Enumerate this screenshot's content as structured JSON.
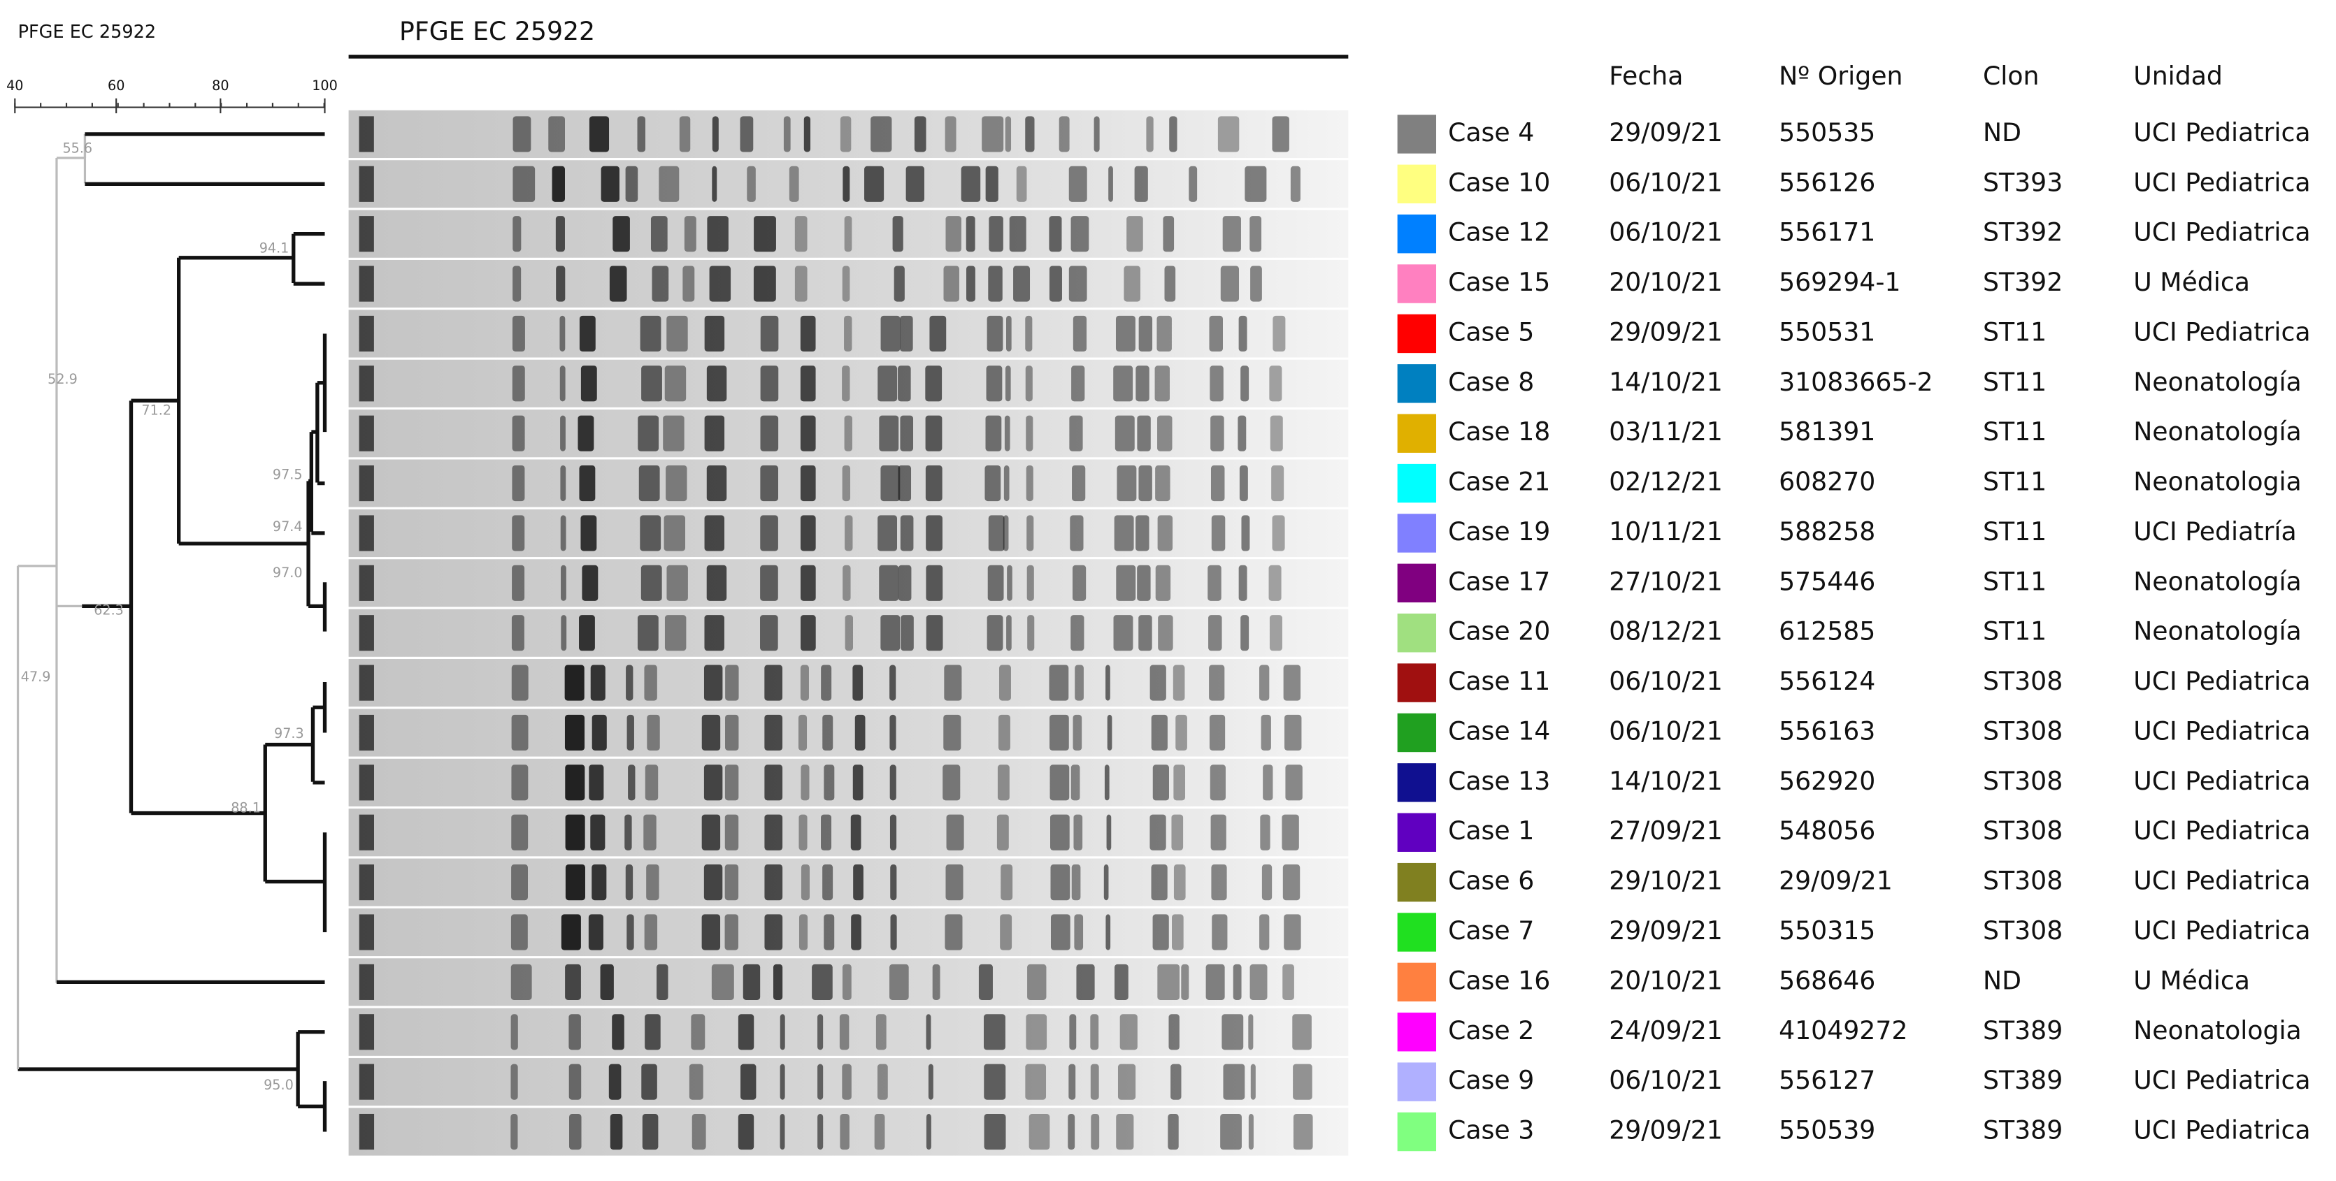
{
  "dendrogram": {
    "title": "PFGE EC 25922",
    "scale_ticks": [
      "40",
      "60",
      "80",
      "100"
    ],
    "nodes": [
      "55.6",
      "52.9",
      "94.1",
      "71.2",
      "97.5",
      "97.4",
      "97.0",
      "62.3",
      "47.9",
      "97.3",
      "88.1",
      "95.0"
    ]
  },
  "gel": {
    "title": "PFGE EC 25922"
  },
  "table": {
    "headers": [
      "Fecha",
      "Nº Origen",
      "Clon",
      "Unidad"
    ],
    "rows": [
      {
        "color": "#808080",
        "case": "Case 4",
        "fecha": "29/09/21",
        "origen": "550535",
        "clon": "ND",
        "unidad": "UCI Pediatrica"
      },
      {
        "color": "#ffff80",
        "case": "Case 10",
        "fecha": "06/10/21",
        "origen": "556126",
        "clon": "ST393",
        "unidad": "UCI Pediatrica"
      },
      {
        "color": "#0080ff",
        "case": "Case 12",
        "fecha": "06/10/21",
        "origen": "556171",
        "clon": "ST392",
        "unidad": "UCI Pediatrica"
      },
      {
        "color": "#ff80c0",
        "case": "Case 15",
        "fecha": "20/10/21",
        "origen": "569294-1",
        "clon": "ST392",
        "unidad": "U Médica"
      },
      {
        "color": "#ff0000",
        "case": "Case 5",
        "fecha": "29/09/21",
        "origen": "550531",
        "clon": "ST11",
        "unidad": "UCI Pediatrica"
      },
      {
        "color": "#0080c0",
        "case": "Case 8",
        "fecha": "14/10/21",
        "origen": "31083665-2",
        "clon": "ST11",
        "unidad": "Neonatología"
      },
      {
        "color": "#e0b000",
        "case": "Case 18",
        "fecha": "03/11/21",
        "origen": "581391",
        "clon": "ST11",
        "unidad": "Neonatología"
      },
      {
        "color": "#00ffff",
        "case": "Case 21",
        "fecha": "02/12/21",
        "origen": "608270",
        "clon": "ST11",
        "unidad": "Neonatologia"
      },
      {
        "color": "#8080ff",
        "case": "Case 19",
        "fecha": "10/11/21",
        "origen": "588258",
        "clon": "ST11",
        "unidad": "UCI Pediatría"
      },
      {
        "color": "#800080",
        "case": "Case 17",
        "fecha": "27/10/21",
        "origen": "575446",
        "clon": "ST11",
        "unidad": "Neonatología"
      },
      {
        "color": "#a0e080",
        "case": "Case 20",
        "fecha": "08/12/21",
        "origen": "612585",
        "clon": "ST11",
        "unidad": "Neonatología"
      },
      {
        "color": "#a01010",
        "case": "Case 11",
        "fecha": "06/10/21",
        "origen": "556124",
        "clon": "ST308",
        "unidad": "UCI Pediatrica"
      },
      {
        "color": "#20a020",
        "case": "Case 14",
        "fecha": "06/10/21",
        "origen": "556163",
        "clon": "ST308",
        "unidad": "UCI Pediatrica"
      },
      {
        "color": "#101090",
        "case": "Case 13",
        "fecha": "14/10/21",
        "origen": "562920",
        "clon": "ST308",
        "unidad": "UCI Pediatrica"
      },
      {
        "color": "#6000c0",
        "case": "Case 1",
        "fecha": "27/09/21",
        "origen": "548056",
        "clon": "ST308",
        "unidad": "UCI Pediatrica"
      },
      {
        "color": "#808020",
        "case": "Case 6",
        "fecha": "29/10/21",
        "origen": "29/09/21",
        "clon": "ST308",
        "unidad": "UCI Pediatrica"
      },
      {
        "color": "#20e020",
        "case": "Case 7",
        "fecha": "29/09/21",
        "origen": "550315",
        "clon": "ST308",
        "unidad": "UCI Pediatrica"
      },
      {
        "color": "#ff8040",
        "case": "Case 16",
        "fecha": "20/10/21",
        "origen": "568646",
        "clon": "ND",
        "unidad": "U Médica"
      },
      {
        "color": "#ff00ff",
        "case": "Case 2",
        "fecha": "24/09/21",
        "origen": "41049272",
        "clon": "ST389",
        "unidad": "Neonatologia"
      },
      {
        "color": "#b0b0ff",
        "case": "Case 9",
        "fecha": "06/10/21",
        "origen": "556127",
        "clon": "ST389",
        "unidad": "UCI Pediatrica"
      },
      {
        "color": "#80ff80",
        "case": "Case 3",
        "fecha": "29/09/21",
        "origen": "550539",
        "clon": "ST389",
        "unidad": "UCI Pediatrica"
      }
    ]
  }
}
